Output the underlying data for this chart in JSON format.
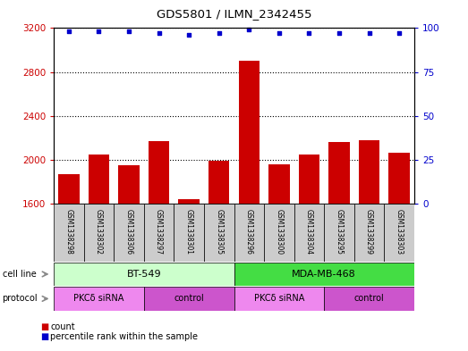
{
  "title": "GDS5801 / ILMN_2342455",
  "samples": [
    "GSM1338298",
    "GSM1338302",
    "GSM1338306",
    "GSM1338297",
    "GSM1338301",
    "GSM1338305",
    "GSM1338296",
    "GSM1338300",
    "GSM1338304",
    "GSM1338295",
    "GSM1338299",
    "GSM1338303"
  ],
  "counts": [
    1870,
    2050,
    1950,
    2170,
    1640,
    1990,
    2900,
    1960,
    2050,
    2160,
    2180,
    2060
  ],
  "percentile_ranks": [
    98,
    98,
    98,
    97,
    96,
    97,
    99,
    97,
    97,
    97,
    97,
    97
  ],
  "bar_color": "#cc0000",
  "dot_color": "#0000cc",
  "ylim_left": [
    1600,
    3200
  ],
  "ylim_right": [
    0,
    100
  ],
  "yticks_left": [
    1600,
    2000,
    2400,
    2800,
    3200
  ],
  "yticks_right": [
    0,
    25,
    50,
    75,
    100
  ],
  "cell_line_groups": [
    {
      "label": "BT-549",
      "start": 0,
      "end": 6,
      "color": "#ccffcc"
    },
    {
      "label": "MDA-MB-468",
      "start": 6,
      "end": 12,
      "color": "#44dd44"
    }
  ],
  "protocol_groups": [
    {
      "label": "PKCδ siRNA",
      "start": 0,
      "end": 3,
      "color": "#ee88ee"
    },
    {
      "label": "control",
      "start": 3,
      "end": 6,
      "color": "#cc55cc"
    },
    {
      "label": "PKCδ siRNA",
      "start": 6,
      "end": 9,
      "color": "#ee88ee"
    },
    {
      "label": "control",
      "start": 9,
      "end": 12,
      "color": "#cc55cc"
    }
  ],
  "bg_color": "#cccccc",
  "plot_bg": "#ffffff",
  "legend_count_color": "#cc0000",
  "legend_dot_color": "#0000cc",
  "left_label_color": "#cc0000",
  "right_label_color": "#0000cc"
}
